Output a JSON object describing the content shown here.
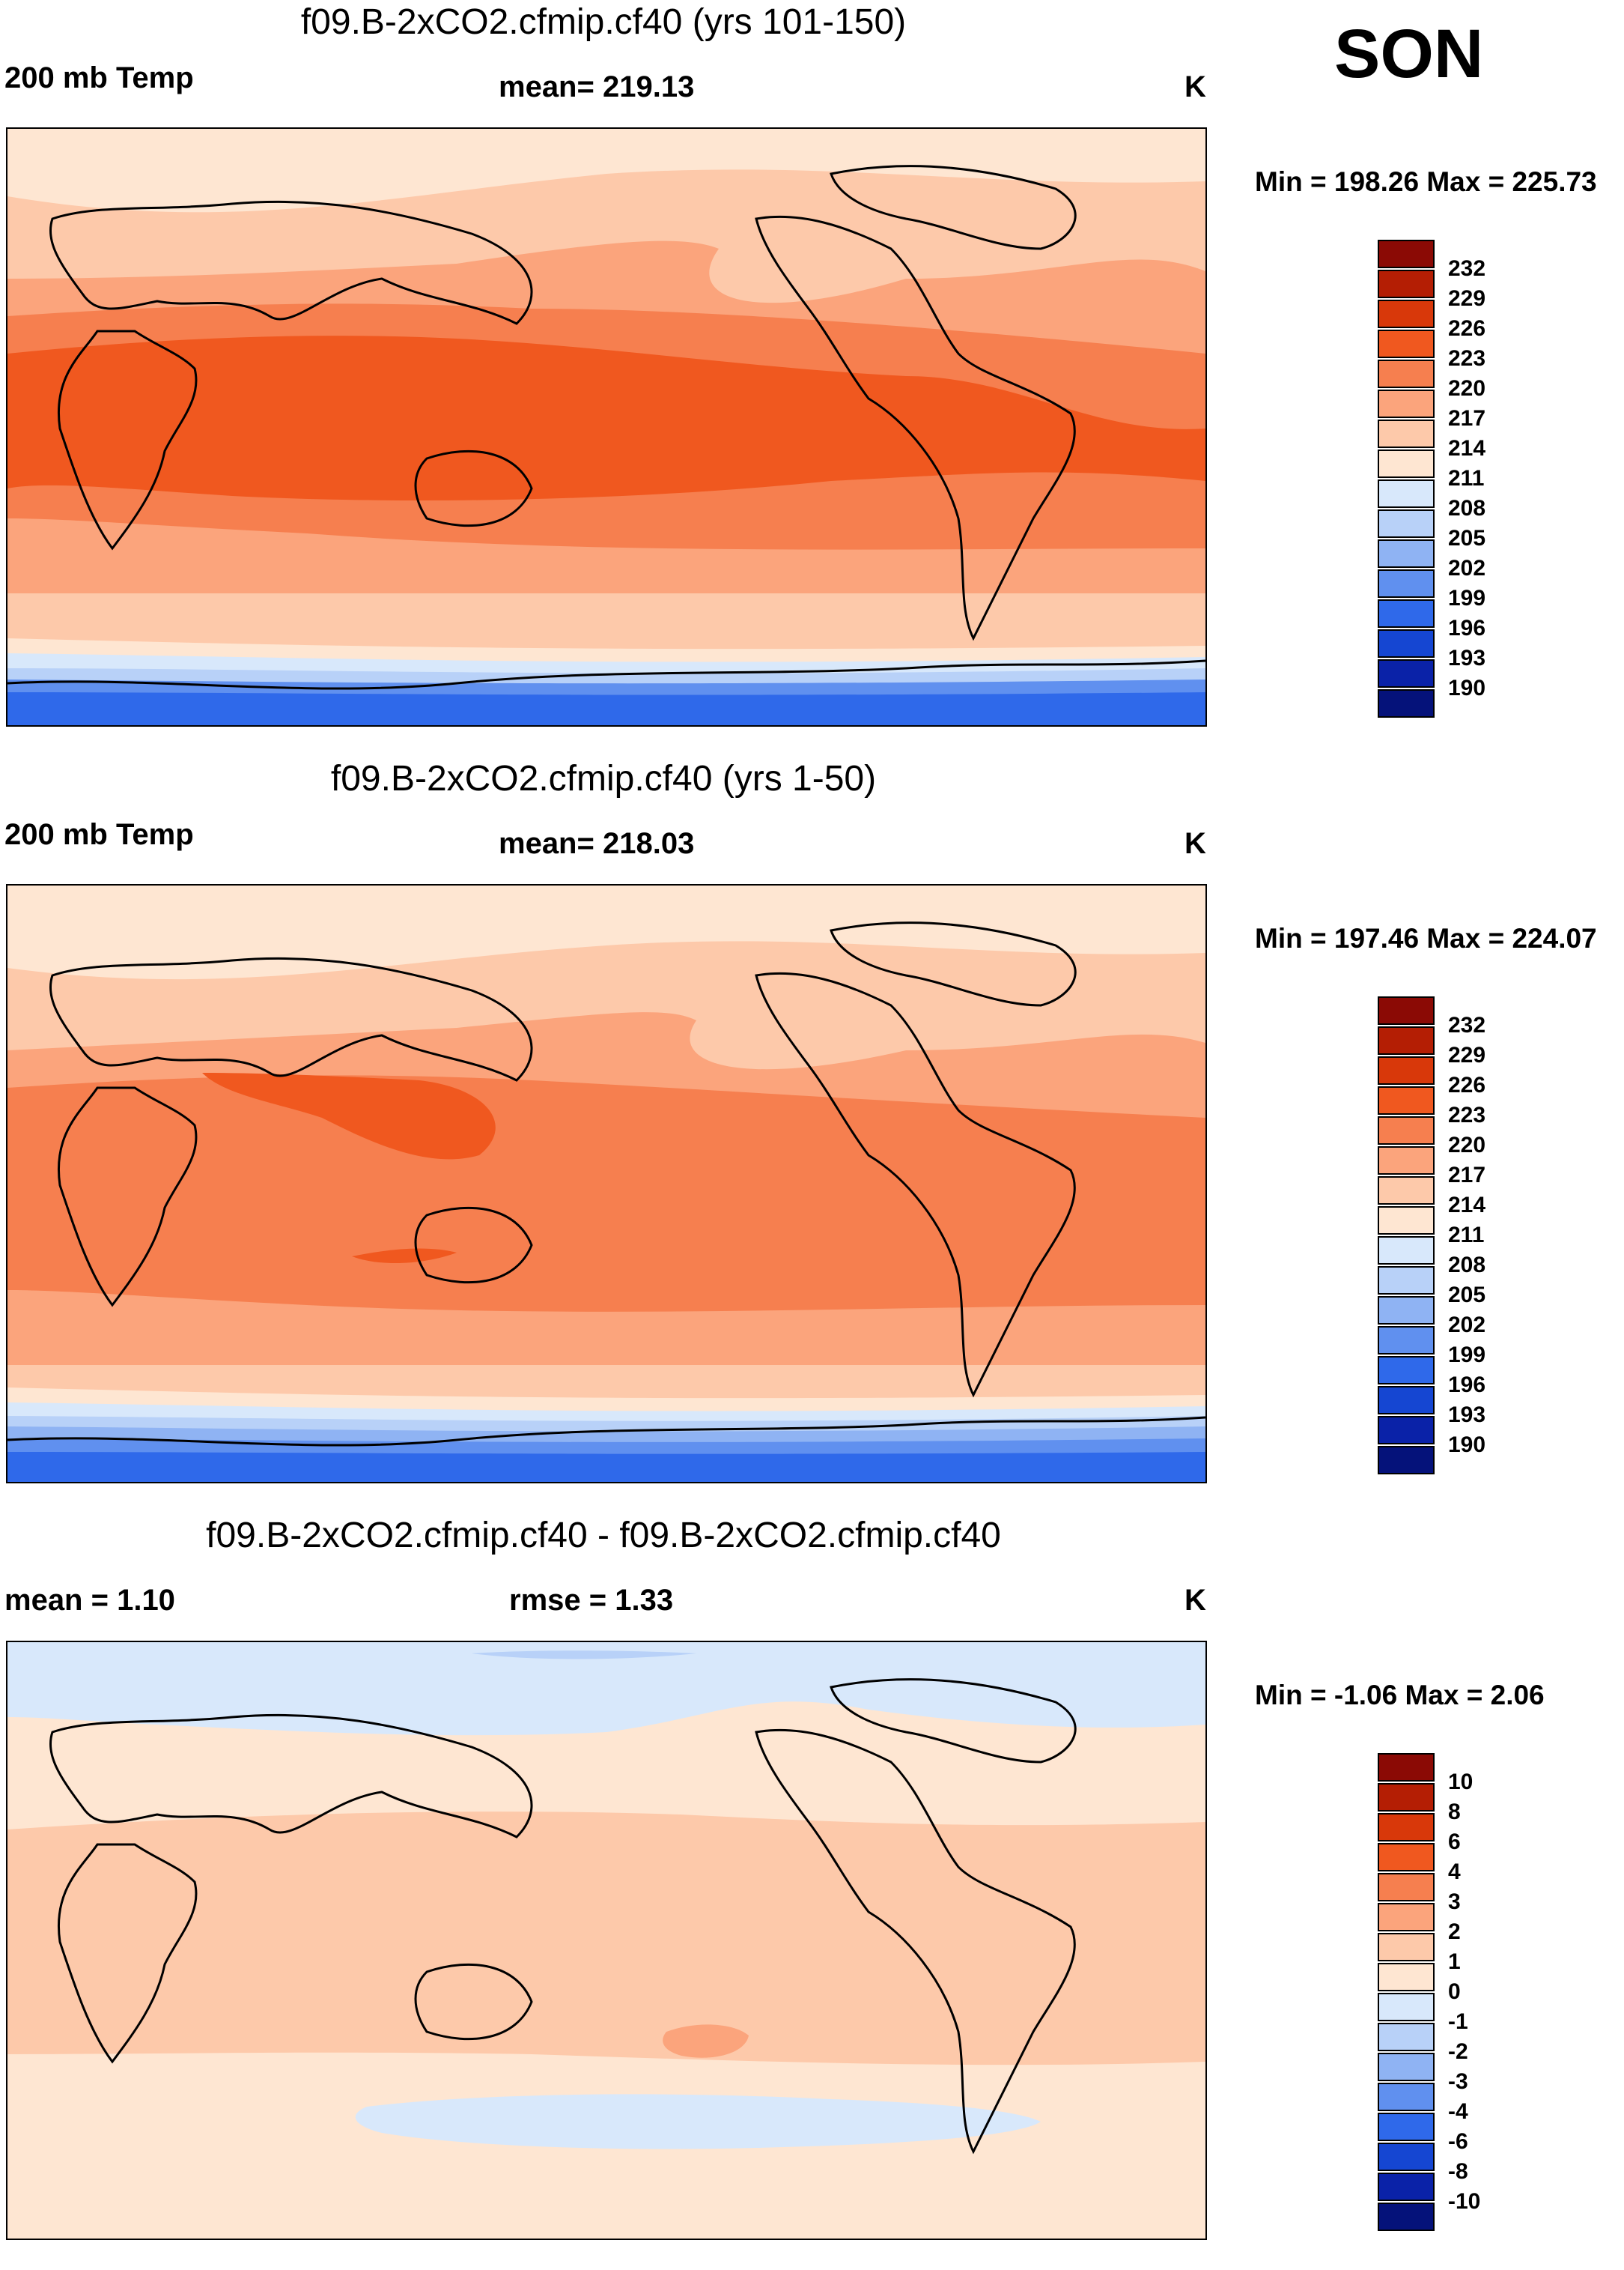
{
  "season": "SON",
  "panels": [
    {
      "title": "f09.B-2xCO2.cfmip.cf40 (yrs 101-150)",
      "left_label": "200 mb Temp",
      "mid_label": "mean= 219.13",
      "unit": "K",
      "minmax": "Min = 198.26 Max = 225.73"
    },
    {
      "title": "f09.B-2xCO2.cfmip.cf40 (yrs 1-50)",
      "left_label": "200 mb Temp",
      "mid_label": "mean= 218.03",
      "unit": "K",
      "minmax": "Min = 197.46 Max = 224.07"
    },
    {
      "title": "f09.B-2xCO2.cfmip.cf40 - f09.B-2xCO2.cfmip.cf40",
      "left_label": "mean =   1.10",
      "mid_label": "rmse =   1.33",
      "unit": "K",
      "minmax": "Min =  -1.06 Max =   2.06"
    }
  ],
  "colorbars": {
    "temp": {
      "labels": [
        "232",
        "229",
        "226",
        "223",
        "220",
        "217",
        "214",
        "211",
        "208",
        "205",
        "202",
        "199",
        "196",
        "193",
        "190"
      ],
      "colors": [
        "#8b0a05",
        "#b41e04",
        "#d8380a",
        "#f0581f",
        "#f67f4f",
        "#fba47c",
        "#fdc9aa",
        "#fee6d2",
        "#d8e8fb",
        "#b8d1f8",
        "#8fb3f3",
        "#6090ef",
        "#2f69ea",
        "#1546d2",
        "#0a22a8",
        "#05127a"
      ]
    },
    "diff": {
      "labels": [
        "10",
        "8",
        "6",
        "4",
        "3",
        "2",
        "1",
        "0",
        "-1",
        "-2",
        "-3",
        "-4",
        "-6",
        "-8",
        "-10"
      ],
      "colors": [
        "#8b0a05",
        "#b41e04",
        "#d8380a",
        "#f0581f",
        "#f67f4f",
        "#fba47c",
        "#fdc9aa",
        "#fee6d2",
        "#d8e8fb",
        "#b8d1f8",
        "#8fb3f3",
        "#6090ef",
        "#2f69ea",
        "#1546d2",
        "#0a22a8",
        "#05127a"
      ]
    }
  }
}
